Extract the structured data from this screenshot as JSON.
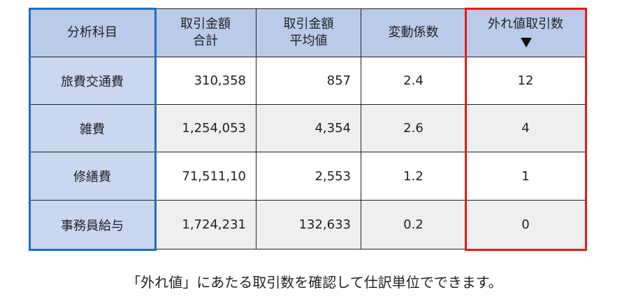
{
  "table": {
    "header": [
      [
        "分析科目"
      ],
      [
        "取引金額",
        "合計"
      ],
      [
        "取引金額",
        "平均値"
      ],
      [
        "変動係数"
      ],
      [
        "外れ値取引数"
      ]
    ],
    "rows": [
      [
        "旅費交通費",
        "310,358",
        "857",
        "2.4",
        "12"
      ],
      [
        "雑費",
        "1,254,053",
        "4,354",
        "2.6",
        "4"
      ],
      [
        "修繕費",
        "71,511,10",
        "2,553",
        "1.2",
        "1"
      ],
      [
        "事務員給与",
        "1,724,231",
        "132,633",
        "0.2",
        "0"
      ]
    ]
  },
  "caption": "「外れ値」にあたる取引数を確認して仕訳単位でできます。"
}
